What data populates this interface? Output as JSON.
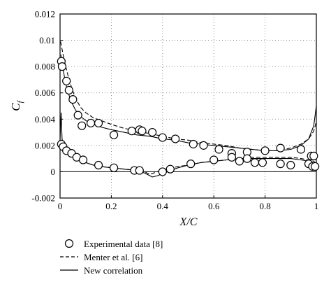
{
  "chart_data": {
    "type": "line",
    "xlabel": "X/C",
    "ylabel": "C",
    "ylabel_subscript": "f",
    "xlim": [
      0,
      1
    ],
    "ylim": [
      -0.002,
      0.012
    ],
    "x_ticks": [
      0,
      0.2,
      0.4,
      0.6,
      0.8,
      1
    ],
    "x_tick_labels": [
      "0",
      "0.2",
      "0.4",
      "0.6",
      "0.8",
      "1"
    ],
    "y_ticks": [
      -0.002,
      0,
      0.002,
      0.004,
      0.006,
      0.008,
      0.01,
      0.012
    ],
    "y_tick_labels": [
      "-0.002",
      "0",
      "0.002",
      "0.004",
      "0.006",
      "0.008",
      "0.01",
      "0.012"
    ],
    "grid": "dotted",
    "legend_position": "below",
    "series": [
      {
        "name": "Experimental data [8]",
        "style": "open-circle",
        "x": [
          0.005,
          0.008,
          0.025,
          0.035,
          0.05,
          0.07,
          0.085,
          0.12,
          0.15,
          0.21,
          0.28,
          0.31,
          0.32,
          0.36,
          0.4,
          0.45,
          0.52,
          0.56,
          0.62,
          0.67,
          0.73,
          0.8,
          0.86,
          0.94,
          0.98,
          0.99,
          0.005,
          0.012,
          0.025,
          0.045,
          0.065,
          0.09,
          0.15,
          0.21,
          0.29,
          0.31,
          0.4,
          0.43,
          0.51,
          0.6,
          0.67,
          0.7,
          0.73,
          0.76,
          0.79,
          0.86,
          0.9,
          0.97,
          0.985,
          0.995
        ],
        "y": [
          0.0084,
          0.008,
          0.0069,
          0.0062,
          0.0055,
          0.0043,
          0.0035,
          0.0037,
          0.0037,
          0.0028,
          0.0031,
          0.0032,
          0.0031,
          0.003,
          0.0026,
          0.0025,
          0.0021,
          0.002,
          0.0017,
          0.0014,
          0.0015,
          0.0016,
          0.0018,
          0.0017,
          0.0012,
          0.0012,
          0.0021,
          0.0019,
          0.0016,
          0.0014,
          0.0011,
          0.0009,
          0.0005,
          0.0003,
          0.0001,
          0.0001,
          0.0,
          0.0002,
          0.0006,
          0.0009,
          0.0011,
          0.0008,
          0.001,
          0.0007,
          0.0007,
          0.0006,
          0.0005,
          0.0006,
          0.0004,
          0.0004
        ]
      },
      {
        "name": "Menter et al. [6]",
        "style": "dashed",
        "x": [
          0.002,
          0.006,
          0.012,
          0.02,
          0.03,
          0.045,
          0.06,
          0.08,
          0.1,
          0.13,
          0.16,
          0.2,
          0.25,
          0.3,
          0.35,
          0.4,
          0.45,
          0.5,
          0.55,
          0.6,
          0.65,
          0.7,
          0.75,
          0.8,
          0.85,
          0.9,
          0.94,
          0.97,
          0.99,
          1.0,
          0.0,
          0.005,
          0.012,
          0.025,
          0.04,
          0.06,
          0.08,
          0.1,
          0.13,
          0.16,
          0.2,
          0.25,
          0.3,
          0.33,
          0.35,
          0.38,
          0.42,
          0.46,
          0.5,
          0.55,
          0.6,
          0.65,
          0.7,
          0.75,
          0.8,
          0.85,
          0.9,
          0.94,
          0.97,
          0.99,
          1.0
        ],
        "y": [
          0.0099,
          0.0095,
          0.0089,
          0.0082,
          0.0074,
          0.0064,
          0.0056,
          0.0049,
          0.0045,
          0.0041,
          0.0039,
          0.0036,
          0.0033,
          0.0031,
          0.0029,
          0.0027,
          0.0025,
          0.0024,
          0.0022,
          0.0021,
          0.002,
          0.0018,
          0.0017,
          0.0016,
          0.0016,
          0.0018,
          0.0021,
          0.0025,
          0.0031,
          0.0038,
          0.0023,
          0.0022,
          0.002,
          0.0017,
          0.0014,
          0.0011,
          0.0009,
          0.0007,
          0.0005,
          0.0004,
          0.0003,
          0.0002,
          0.0001,
          0.0,
          -0.0002,
          0.0,
          0.0002,
          0.0004,
          0.0005,
          0.0007,
          0.0008,
          0.0009,
          0.001,
          0.0011,
          0.0011,
          0.0011,
          0.0011,
          0.001,
          0.0009,
          0.0008,
          0.0006
        ]
      },
      {
        "name": "New correlation",
        "style": "solid",
        "x": [
          0.003,
          0.007,
          0.012,
          0.02,
          0.03,
          0.045,
          0.06,
          0.08,
          0.1,
          0.13,
          0.16,
          0.2,
          0.25,
          0.3,
          0.35,
          0.4,
          0.45,
          0.5,
          0.55,
          0.6,
          0.65,
          0.7,
          0.75,
          0.8,
          0.85,
          0.9,
          0.94,
          0.97,
          0.99,
          1.0,
          0.0,
          0.004,
          0.008,
          0.015,
          0.025,
          0.04,
          0.06,
          0.08,
          0.1,
          0.13,
          0.16,
          0.2,
          0.25,
          0.3,
          0.33,
          0.36,
          0.38,
          0.42,
          0.46,
          0.5,
          0.55,
          0.6,
          0.65,
          0.7,
          0.75,
          0.8,
          0.85,
          0.9,
          0.94,
          0.97,
          0.99,
          1.0
        ],
        "y": [
          0.0089,
          0.0085,
          0.0078,
          0.0069,
          0.0061,
          0.0053,
          0.0047,
          0.0042,
          0.0039,
          0.0036,
          0.0034,
          0.0032,
          0.003,
          0.0028,
          0.0027,
          0.0025,
          0.0024,
          0.0022,
          0.0021,
          0.002,
          0.0019,
          0.0018,
          0.0017,
          0.0016,
          0.0016,
          0.0017,
          0.002,
          0.0025,
          0.0035,
          0.005,
          0.0024,
          0.0045,
          0.0025,
          0.0019,
          0.0016,
          0.0013,
          0.001,
          0.0008,
          0.0007,
          0.0005,
          0.0004,
          0.0003,
          0.0002,
          0.0001,
          -0.0001,
          -0.0004,
          -0.0003,
          0.0,
          0.0003,
          0.0005,
          0.0007,
          0.0008,
          0.0009,
          0.001,
          0.001,
          0.001,
          0.001,
          0.001,
          0.0009,
          0.0008,
          0.0006,
          0.0004
        ]
      }
    ]
  }
}
